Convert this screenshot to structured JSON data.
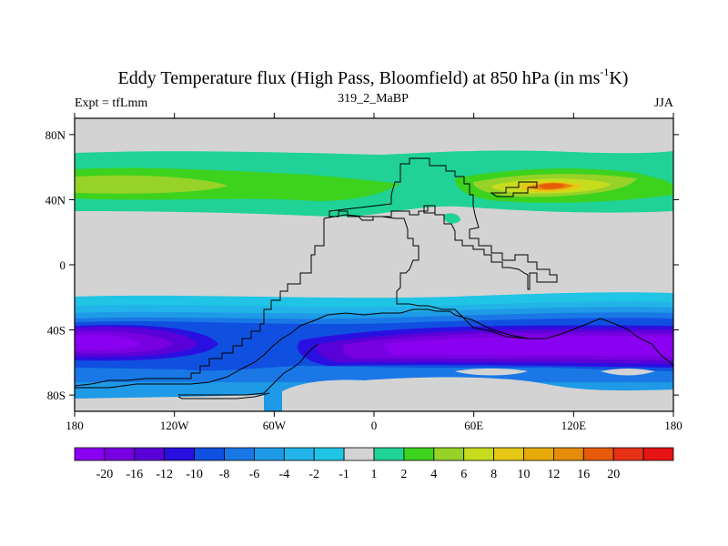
{
  "chart_data": {
    "type": "map-contour",
    "title_main": "Eddy Temperature flux (High Pass, Bloomfield) at 850 hPa (in ms",
    "title_superscript": "-1",
    "title_end": "K)",
    "subtitle_left": "Expt = tfLmm",
    "subtitle_center": "319_2_MaBP",
    "subtitle_right": "JJA",
    "x_ticks": [
      "180",
      "120W",
      "60W",
      "0",
      "60E",
      "120E",
      "180"
    ],
    "x_tick_values": [
      -180,
      -120,
      -60,
      0,
      60,
      120,
      180
    ],
    "y_ticks": [
      "80N",
      "40N",
      "0",
      "40S",
      "80S"
    ],
    "y_tick_values": [
      80,
      40,
      0,
      -40,
      -80
    ],
    "xlim": [
      -180,
      180
    ],
    "ylim": [
      -90,
      90
    ],
    "colorbar": {
      "colors": [
        "#8a00f0",
        "#7800e0",
        "#5a00d8",
        "#2a10e0",
        "#1050e0",
        "#1a78e6",
        "#1e9ae6",
        "#22b4e8",
        "#20c4e4",
        "#d3d3d3",
        "#20d296",
        "#3cd21e",
        "#96d228",
        "#c8dc1e",
        "#e6c814",
        "#e6aa0a",
        "#e68c0a",
        "#e65a0a",
        "#e63214",
        "#e61414"
      ],
      "labels": [
        "-20",
        "-16",
        "-12",
        "-10",
        "-8",
        "-6",
        "-4",
        "-2",
        "-1",
        "1",
        "2",
        "4",
        "6",
        "8",
        "10",
        "12",
        "16",
        "20"
      ]
    }
  }
}
